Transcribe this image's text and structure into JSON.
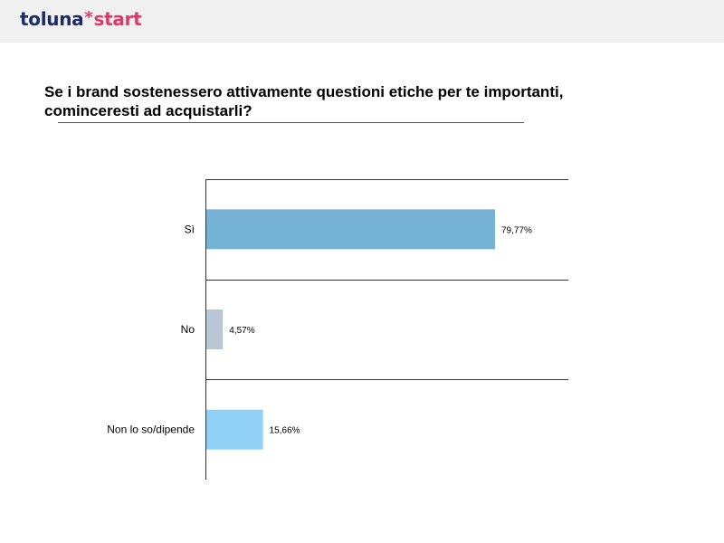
{
  "header": {
    "logo_primary": "toluna",
    "logo_star": "*",
    "logo_secondary": "start",
    "colors": {
      "primary": "#1b2a6b",
      "accent": "#e8336d",
      "background": "#f0f0f0"
    }
  },
  "page": {
    "title": "Se i brand sostenessero attivamente questioni etiche per te importanti, cominceresti ad acquistarli?"
  },
  "chart_data": {
    "type": "bar",
    "orientation": "horizontal",
    "categories": [
      "Sì",
      "No",
      "Non lo so/dipende"
    ],
    "values": [
      79.77,
      4.57,
      15.66
    ],
    "value_labels": [
      "79,77%",
      "4,57%",
      "15,66%"
    ],
    "colors": [
      "#76b2d4",
      "#b8c7d4",
      "#8fd0f4"
    ],
    "xlim": [
      0,
      100
    ],
    "grid": "horizontal separators between categories",
    "legend": "none"
  }
}
